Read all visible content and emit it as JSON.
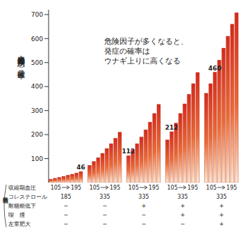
{
  "chart_data": {
    "type": "bar",
    "ylabel": "心臓血管系疾患の発症確率",
    "annotation": [
      "危険因子が多くなると、",
      "発症の確率は",
      "ウナギ上りに高くなる"
    ],
    "ylim": [
      0,
      720
    ],
    "yticks": [
      100,
      200,
      300,
      400,
      500,
      600,
      700
    ],
    "grid": false,
    "tick_labels": "y",
    "color": "#d42a1c",
    "groups": [
      {
        "values": [
          14,
          18,
          22,
          26,
          31,
          35,
          40,
          46
        ]
      },
      {
        "values": [
          72,
          88,
          104,
          122,
          142,
          162,
          185,
          210
        ]
      },
      {
        "values": [
          112,
          136,
          162,
          190,
          220,
          252,
          288,
          326
        ]
      },
      {
        "values": [
          178,
          212,
          248,
          288,
          328,
          368,
          412,
          459
        ]
      },
      {
        "values": [
          372,
          412,
          460,
          510,
          560,
          610,
          660,
          708
        ]
      }
    ],
    "factors_label": "危険因子",
    "factors": [
      {
        "name": "収縮期血圧",
        "range": [
          105,
          195
        ]
      },
      {
        "name": "コレステロール",
        "values": [
          185,
          335,
          335,
          335,
          335
        ]
      },
      {
        "name": "耐糖能低下",
        "values": [
          "−",
          "−",
          "+",
          "+",
          "+"
        ]
      },
      {
        "name": "喫　煙",
        "values": [
          "−",
          "−",
          "−",
          "+",
          "+"
        ]
      },
      {
        "name": "左室肥大",
        "values": [
          "−",
          "−",
          "−",
          "−",
          "+"
        ]
      }
    ]
  }
}
